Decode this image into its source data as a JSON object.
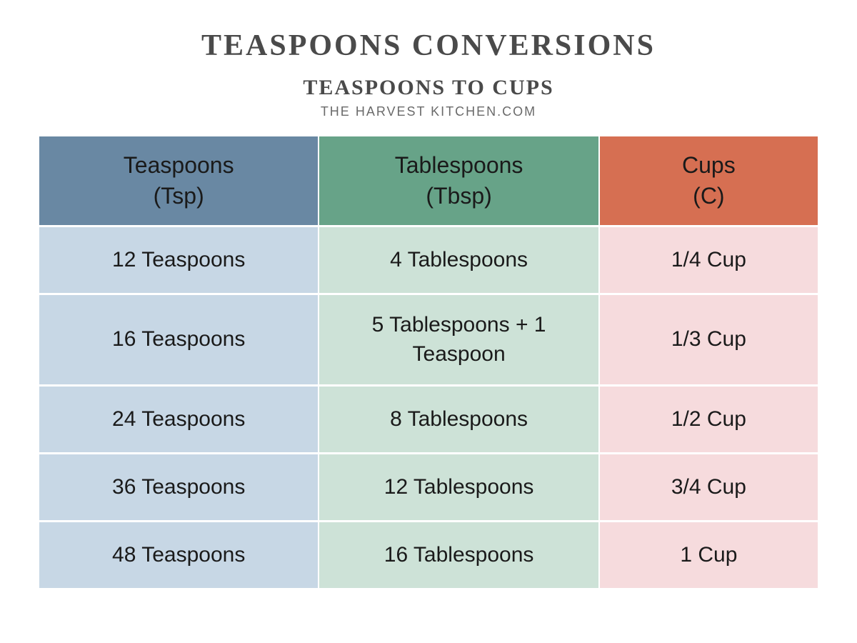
{
  "title": "TEASPOONS CONVERSIONS",
  "subtitle": "TEASPOONS TO CUPS",
  "source": "THE HARVEST KITCHEN.COM",
  "table": {
    "type": "table",
    "columns": [
      {
        "label": "Teaspoons\n(Tsp)",
        "header_bg": "#6988a3",
        "body_bg": "#c7d7e5",
        "width_pct": 36
      },
      {
        "label": "Tablespoons\n(Tbsp)",
        "header_bg": "#67a388",
        "body_bg": "#cde2d7",
        "width_pct": 36
      },
      {
        "label": "Cups\n(C)",
        "header_bg": "#d66f52",
        "body_bg": "#f6dbdd",
        "width_pct": 28
      }
    ],
    "rows": [
      {
        "teaspoons": "12 Teaspoons",
        "tablespoons": "4 Tablespoons",
        "cups": "1/4 Cup",
        "tall": false
      },
      {
        "teaspoons": "16 Teaspoons",
        "tablespoons": "5 Tablespoons + 1 Teaspoon",
        "cups": "1/3 Cup",
        "tall": true
      },
      {
        "teaspoons": "24 Teaspoons",
        "tablespoons": "8 Tablespoons",
        "cups": "1/2 Cup",
        "tall": false
      },
      {
        "teaspoons": "36 Teaspoons",
        "tablespoons": "12 Tablespoons",
        "cups": "3/4 Cup",
        "tall": false
      },
      {
        "teaspoons": "48 Teaspoons",
        "tablespoons": "16 Tablespoons",
        "cups": "1 Cup",
        "tall": false
      }
    ],
    "background_color": "#ffffff",
    "gap_color": "#ffffff",
    "header_fontsize": 32,
    "body_fontsize": 30,
    "text_color": "#1a1a1a",
    "title_color": "#4a4a4a"
  }
}
